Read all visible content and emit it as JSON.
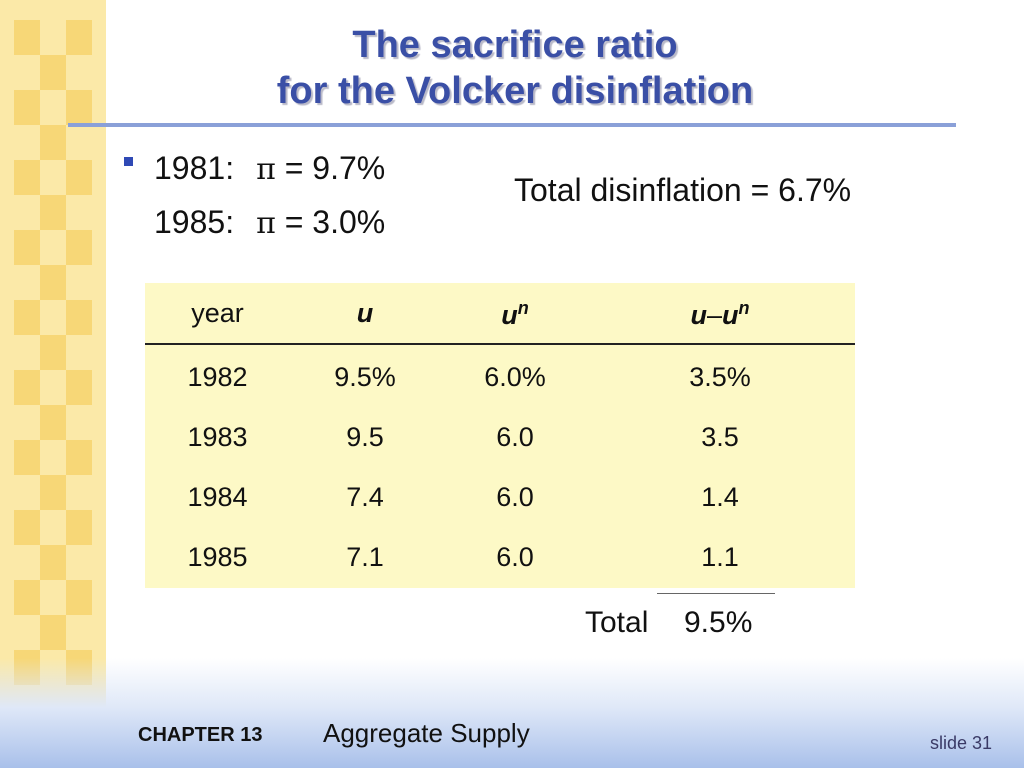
{
  "slide": {
    "title_line1": "The sacrifice ratio",
    "title_line2": "for the Volcker disinflation",
    "bullets": [
      {
        "year_label": "1981:",
        "symbol": "π",
        "value": "= 9.7%"
      },
      {
        "year_label": "1985:",
        "symbol": "π",
        "value": "= 3.0%"
      }
    ],
    "total_disinflation": "Total disinflation = 6.7%"
  },
  "table": {
    "headers": {
      "year": "year",
      "u": "u",
      "un_base": "u",
      "un_sup": "n",
      "diff_a": "u",
      "diff_minus": "–",
      "diff_b": "u",
      "diff_sup": "n"
    },
    "rows": [
      {
        "year": "1982",
        "u": "9.5%",
        "un": "6.0%",
        "diff": "3.5%"
      },
      {
        "year": "1983",
        "u": "9.5",
        "un": "6.0",
        "diff": "3.5"
      },
      {
        "year": "1984",
        "u": "7.4",
        "un": "6.0",
        "diff": "1.4"
      },
      {
        "year": "1985",
        "u": "7.1",
        "un": "6.0",
        "diff": "1.1"
      }
    ],
    "total_label": "Total",
    "total_value": "9.5%"
  },
  "footer": {
    "chapter": "CHAPTER 13",
    "chapter_title": "Aggregate Supply",
    "slide_number": "slide 31"
  },
  "colors": {
    "title": "#3a4fa6",
    "rule": "#8aa0d8",
    "table_bg": "#FDF9C6",
    "strip_light": "#FBE9A8",
    "strip_dark": "#F7D777"
  }
}
